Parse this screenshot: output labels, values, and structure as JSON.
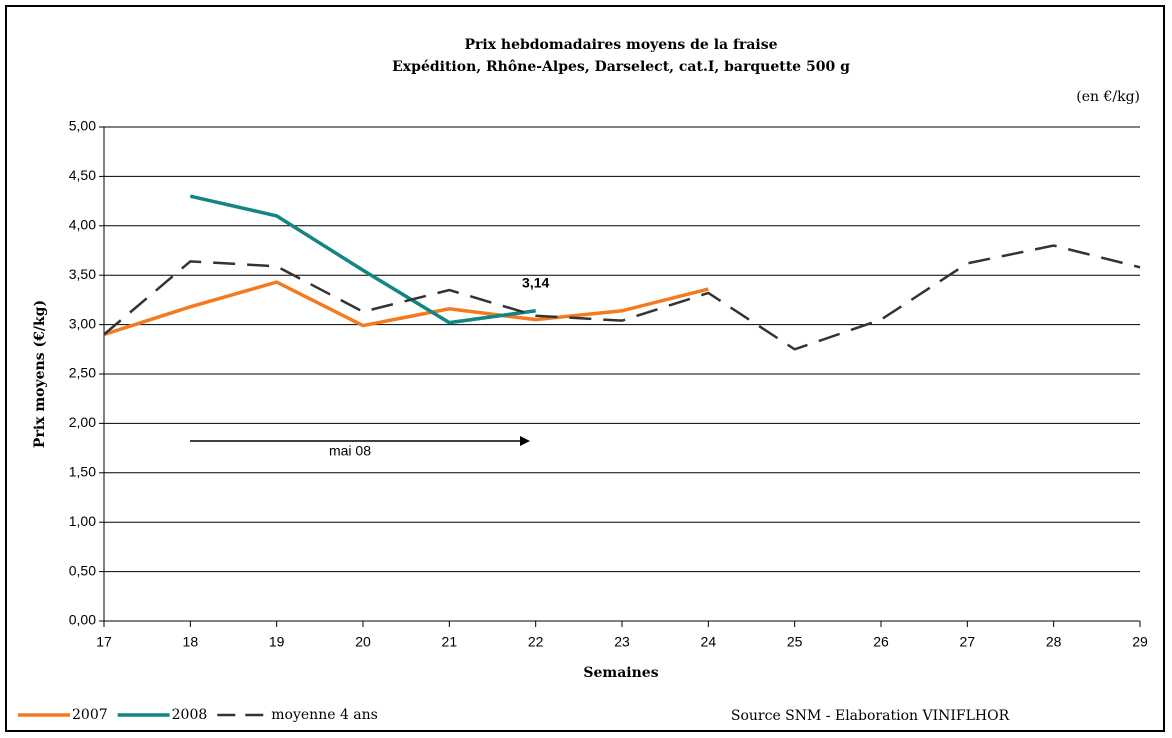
{
  "chart_data": {
    "type": "line",
    "title": "Prix hebdomadaires moyens de la fraise",
    "subtitle": "Expédition, Rhône-Alpes, Darselect, cat.I, barquette 500 g",
    "unit_note": "(en €/kg)",
    "x_label": "Semaines",
    "y_label": "Prix moyens (€/kg)",
    "source": "Source SNM - Elaboration VINIFLHOR",
    "annotation": "mai 08",
    "x": [
      17,
      18,
      19,
      20,
      21,
      22,
      23,
      24,
      25,
      26,
      27,
      28,
      29
    ],
    "xlim": [
      17,
      29
    ],
    "xticks": [
      17,
      18,
      19,
      20,
      21,
      22,
      23,
      24,
      25,
      26,
      27,
      28,
      29
    ],
    "ylim": [
      0,
      5
    ],
    "yticks": [
      {
        "value": 0,
        "label": "0,00"
      },
      {
        "value": 0.5,
        "label": "0,50"
      },
      {
        "value": 1,
        "label": "1,00"
      },
      {
        "value": 1.5,
        "label": "1,50"
      },
      {
        "value": 2,
        "label": "2,00"
      },
      {
        "value": 2.5,
        "label": "2,50"
      },
      {
        "value": 3,
        "label": "3,00"
      },
      {
        "value": 3.5,
        "label": "3,50"
      },
      {
        "value": 4,
        "label": "4,00"
      },
      {
        "value": 4.5,
        "label": "4,50"
      },
      {
        "value": 5,
        "label": "5,00"
      }
    ],
    "grid": true,
    "series": [
      {
        "name": "2007",
        "color": "#f47a20",
        "dash": false,
        "values": [
          2.9,
          3.18,
          3.43,
          2.99,
          3.16,
          3.05,
          3.14,
          3.36,
          null,
          null,
          null,
          null,
          null
        ]
      },
      {
        "name": "2008",
        "color": "#138585",
        "dash": false,
        "values": [
          null,
          4.3,
          4.1,
          3.55,
          3.02,
          3.14,
          null,
          null,
          null,
          null,
          null,
          null,
          null
        ],
        "value_labels": [
          null,
          null,
          null,
          null,
          null,
          "3,14",
          null,
          null,
          null,
          null,
          null,
          null,
          null
        ]
      },
      {
        "name": "moyenne 4 ans",
        "color": "#333333",
        "dash": true,
        "values": [
          2.9,
          3.64,
          3.59,
          3.13,
          3.35,
          3.09,
          3.04,
          3.32,
          2.75,
          3.05,
          3.62,
          3.8,
          3.58
        ]
      }
    ]
  }
}
